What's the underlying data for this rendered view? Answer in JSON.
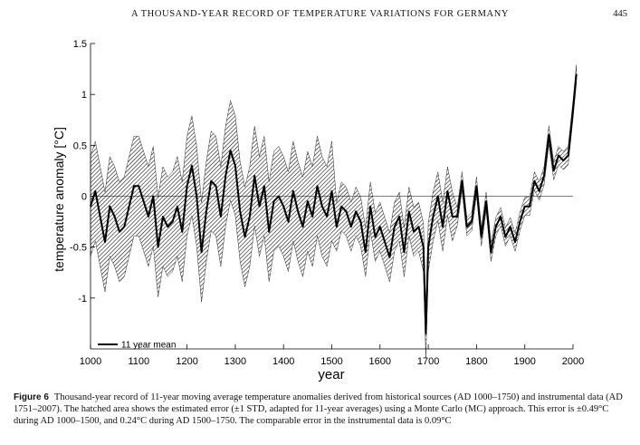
{
  "header": {
    "running_title": "A THOUSAND-YEAR RECORD OF TEMPERATURE VARIATIONS FOR GERMANY",
    "page_number": "445"
  },
  "caption": {
    "label": "Figure 6",
    "text": "Thousand-year record of 11-year moving average temperature anomalies derived from historical sources (AD 1000–1750) and instrumental data (AD 1751–2007). The hatched area shows the estimated error (±1 STD, adapted for 11-year averages) using a Monte Carlo (MC) approach. This error is ±0.49°C during AD 1000–1500, and 0.24°C during AD 1500–1750. The comparable error in the instrumental data is 0.09°C"
  },
  "chart_data": {
    "type": "line",
    "xlabel": "year",
    "ylabel": "temperature anomaly [°C]",
    "xlim": [
      1000,
      2000
    ],
    "ylim": [
      -1.5,
      1.5
    ],
    "x_ticks": [
      1000,
      1100,
      1200,
      1300,
      1400,
      1500,
      1600,
      1700,
      1800,
      1900,
      2000
    ],
    "x_tick_labels": [
      "1000",
      "1100",
      "1200",
      "1300",
      "1400",
      "1500",
      "1600",
      "1700",
      "1800",
      "1900",
      "2000"
    ],
    "y_ticks": [
      -1,
      -0.5,
      0,
      0.5,
      1,
      1.5
    ],
    "y_tick_labels": [
      "-1",
      "-0.5",
      "0",
      "0.5",
      "1",
      "1.5"
    ],
    "zero_line": true,
    "grid": false,
    "legend": {
      "placement": "bottom-left",
      "entries": [
        "11 year mean"
      ]
    },
    "error_band": [
      {
        "from": 1000,
        "to": 1500,
        "std": 0.49
      },
      {
        "from": 1500,
        "to": 1750,
        "std": 0.24
      },
      {
        "from": 1750,
        "to": 2007,
        "std": 0.09
      }
    ],
    "series": [
      {
        "name": "11 year mean",
        "x": [
          1000,
          1010,
          1020,
          1030,
          1040,
          1050,
          1060,
          1070,
          1080,
          1090,
          1100,
          1110,
          1120,
          1130,
          1140,
          1150,
          1160,
          1170,
          1180,
          1190,
          1200,
          1210,
          1220,
          1230,
          1240,
          1250,
          1260,
          1270,
          1280,
          1290,
          1300,
          1310,
          1320,
          1330,
          1340,
          1350,
          1360,
          1370,
          1380,
          1390,
          1400,
          1410,
          1420,
          1430,
          1440,
          1450,
          1460,
          1470,
          1480,
          1490,
          1500,
          1510,
          1520,
          1530,
          1540,
          1550,
          1560,
          1570,
          1580,
          1590,
          1600,
          1610,
          1620,
          1630,
          1640,
          1650,
          1660,
          1670,
          1680,
          1690,
          1695,
          1700,
          1710,
          1720,
          1730,
          1740,
          1750,
          1760,
          1770,
          1780,
          1790,
          1800,
          1810,
          1820,
          1830,
          1840,
          1850,
          1860,
          1870,
          1880,
          1890,
          1900,
          1910,
          1920,
          1930,
          1940,
          1950,
          1960,
          1970,
          1980,
          1990,
          2000,
          2007
        ],
        "y": [
          -0.1,
          0.05,
          -0.2,
          -0.45,
          -0.1,
          -0.2,
          -0.35,
          -0.3,
          -0.1,
          0.1,
          0.1,
          -0.05,
          -0.2,
          0.0,
          -0.5,
          -0.2,
          -0.3,
          -0.25,
          -0.1,
          -0.35,
          0.1,
          0.3,
          0.0,
          -0.55,
          -0.15,
          0.15,
          0.1,
          -0.2,
          0.2,
          0.45,
          0.3,
          -0.15,
          -0.4,
          -0.2,
          0.2,
          -0.1,
          0.1,
          -0.35,
          -0.05,
          0.0,
          -0.1,
          -0.25,
          0.05,
          -0.15,
          -0.3,
          -0.05,
          -0.2,
          0.1,
          -0.1,
          -0.2,
          0.05,
          -0.3,
          -0.1,
          -0.15,
          -0.3,
          -0.15,
          -0.25,
          -0.55,
          -0.1,
          -0.4,
          -0.3,
          -0.45,
          -0.6,
          -0.3,
          -0.2,
          -0.55,
          -0.15,
          -0.35,
          -0.3,
          -0.5,
          -1.35,
          -0.5,
          -0.2,
          0.0,
          -0.3,
          0.05,
          -0.2,
          -0.2,
          0.15,
          -0.3,
          -0.25,
          0.1,
          -0.4,
          -0.05,
          -0.55,
          -0.3,
          -0.2,
          -0.4,
          -0.3,
          -0.45,
          -0.25,
          -0.1,
          -0.1,
          0.15,
          0.05,
          0.2,
          0.6,
          0.25,
          0.4,
          0.35,
          0.4,
          0.85,
          1.2
        ]
      }
    ]
  }
}
